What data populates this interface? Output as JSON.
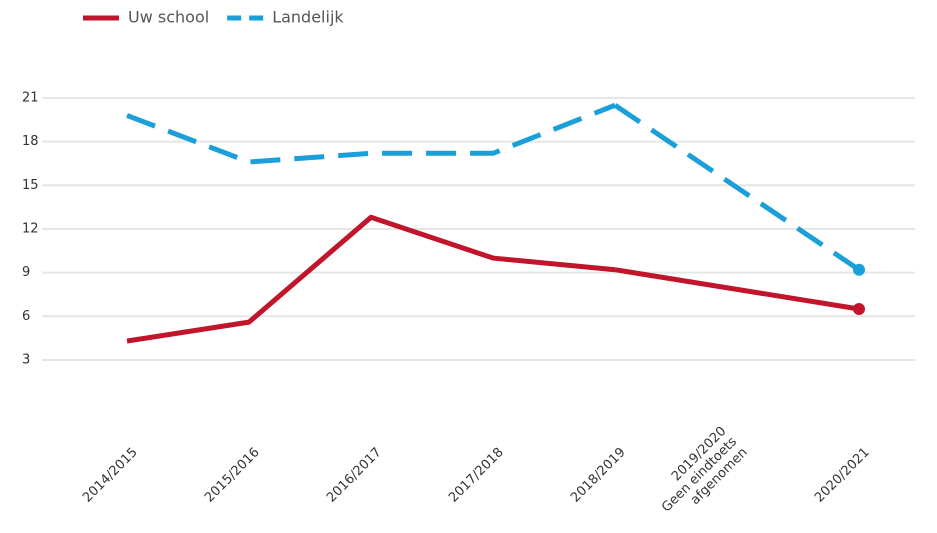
{
  "chart_data": {
    "type": "line",
    "categories": [
      "2014/2015",
      "2015/2016",
      "2016/2017",
      "2017/2018",
      "2018/2019",
      "2019/2020\nGeen eindtoets\nafgenomen",
      "2020/2021"
    ],
    "series": [
      {
        "name": "Uw school",
        "color": "#c0152a",
        "dashed": false,
        "values": [
          4.3,
          5.6,
          12.8,
          10.0,
          9.2,
          null,
          6.5
        ]
      },
      {
        "name": "Landelijk",
        "color": "#1a9fd9",
        "dashed": true,
        "values": [
          19.8,
          16.6,
          17.2,
          17.2,
          20.5,
          null,
          9.2
        ]
      }
    ],
    "ylim": [
      0,
      24
    ],
    "yticks": [
      3,
      6,
      9,
      12,
      15,
      18,
      21
    ],
    "grid": true,
    "legend": "top-left"
  }
}
